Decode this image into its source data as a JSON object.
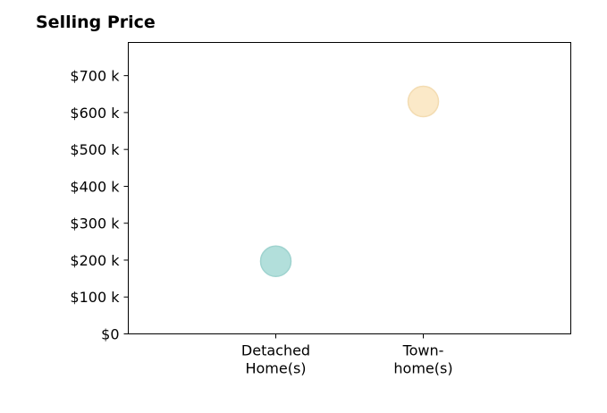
{
  "chart_data": {
    "type": "scatter",
    "title": "Selling Price",
    "xlabel": "",
    "ylabel": "",
    "categories": [
      [
        "Detached",
        "Home(s)"
      ],
      [
        "Town-",
        "home(s)"
      ]
    ],
    "values": [
      197000,
      630000
    ],
    "point_colors": [
      "#b2dfdb",
      "#fbe9c8"
    ],
    "point_stroke_colors": [
      "#9fd3cf",
      "#f3dcb2"
    ],
    "ylim": [
      0,
      790000
    ],
    "y_ticks": [
      0,
      100000,
      200000,
      300000,
      400000,
      500000,
      600000,
      700000
    ],
    "y_tick_labels": [
      "$0",
      "$100 k",
      "$200 k",
      "$300 k",
      "$400 k",
      "$500 k",
      "$600 k",
      "$700 k"
    ],
    "grid": false,
    "legend": "none"
  }
}
